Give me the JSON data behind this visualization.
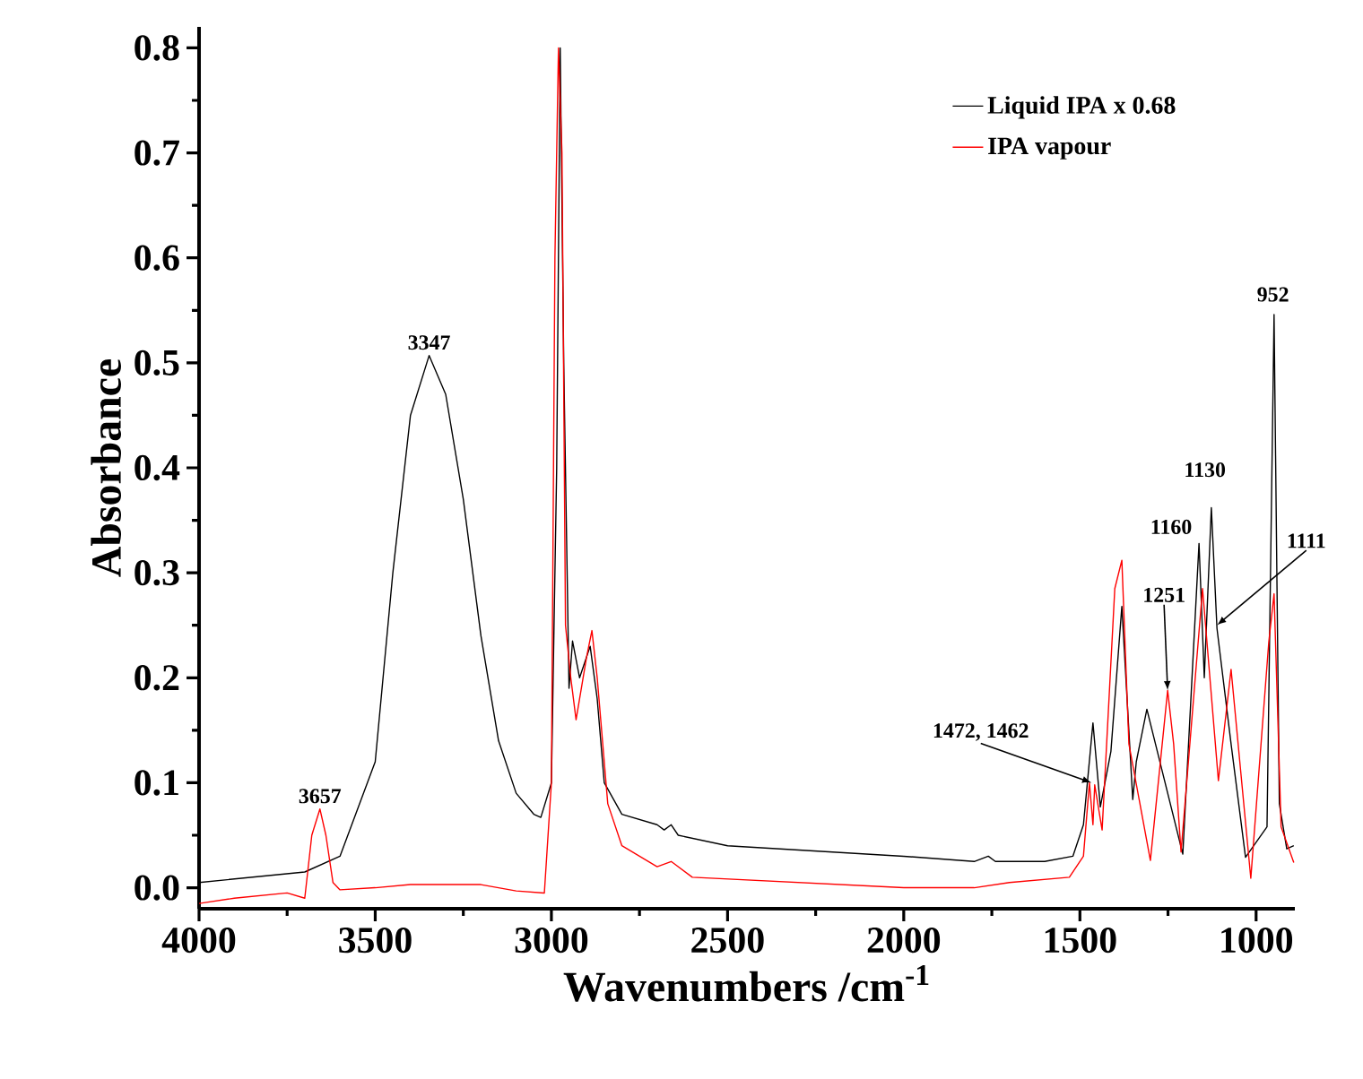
{
  "chart_data": {
    "type": "line",
    "xlabel": "Wavenumbers /cm$^{-1}$",
    "ylabel": "Absorbance",
    "xlim": [
      4000,
      890
    ],
    "ylim": [
      -0.02,
      0.82
    ],
    "xticks": [
      4000,
      3500,
      3000,
      2500,
      2000,
      1500,
      1000
    ],
    "yticks": [
      {
        "value": 0,
        "label": "0.0"
      },
      0.1,
      0.2,
      0.3,
      0.4,
      0.5,
      0.6,
      0.7,
      0.8
    ],
    "legend": "top right",
    "marker": "none",
    "line_style": "solid",
    "grid": false,
    "series": [
      {
        "name": "Liquid IPA x 0.68",
        "color": "#000000",
        "x": [
          4000,
          3700,
          3600,
          3500,
          3450,
          3400,
          3347,
          3300,
          3250,
          3200,
          3150,
          3100,
          3050,
          3030,
          3000,
          2985,
          2975,
          2965,
          2950,
          2940,
          2920,
          2890,
          2870,
          2850,
          2800,
          2700,
          2680,
          2660,
          2640,
          2500,
          2000,
          1800,
          1760,
          1740,
          1600,
          1520,
          1490,
          1463,
          1442,
          1412,
          1381,
          1350,
          1340,
          1310,
          1208,
          1162,
          1147,
          1127,
          1111,
          1071,
          1030,
          969,
          949,
          934,
          913,
          893
        ],
        "values": [
          0.005,
          0.015,
          0.03,
          0.12,
          0.3,
          0.45,
          0.507,
          0.47,
          0.37,
          0.24,
          0.14,
          0.09,
          0.07,
          0.067,
          0.1,
          0.4,
          0.8,
          0.5,
          0.19,
          0.235,
          0.2,
          0.23,
          0.18,
          0.1,
          0.07,
          0.06,
          0.055,
          0.06,
          0.05,
          0.04,
          0.03,
          0.025,
          0.03,
          0.025,
          0.025,
          0.03,
          0.06,
          0.157,
          0.077,
          0.13,
          0.268,
          0.084,
          0.12,
          0.17,
          0.032,
          0.328,
          0.2,
          0.362,
          0.247,
          0.137,
          0.029,
          0.058,
          0.546,
          0.08,
          0.037,
          0.04
        ]
      },
      {
        "name": "IPA vapour",
        "color": "#ff0000",
        "x": [
          4000,
          3900,
          3750,
          3700,
          3680,
          3657,
          3640,
          3620,
          3600,
          3500,
          3400,
          3200,
          3100,
          3020,
          3000,
          2990,
          2980,
          2970,
          2960,
          2945,
          2930,
          2900,
          2885,
          2870,
          2840,
          2800,
          2700,
          2660,
          2600,
          2000,
          1800,
          1700,
          1530,
          1490,
          1473,
          1463,
          1458,
          1437,
          1401,
          1381,
          1361,
          1300,
          1251,
          1234,
          1213,
          1152,
          1107,
          1071,
          1015,
          964,
          949,
          929,
          893
        ],
        "values": [
          -0.015,
          -0.01,
          -0.005,
          -0.01,
          0.05,
          0.075,
          0.05,
          0.005,
          -0.002,
          0.0,
          0.003,
          0.003,
          -0.003,
          -0.005,
          0.1,
          0.6,
          0.8,
          0.7,
          0.25,
          0.2,
          0.16,
          0.22,
          0.245,
          0.2,
          0.08,
          0.04,
          0.02,
          0.025,
          0.01,
          0.0,
          0.0,
          0.005,
          0.01,
          0.03,
          0.1,
          0.06,
          0.098,
          0.055,
          0.285,
          0.312,
          0.137,
          0.026,
          0.188,
          0.137,
          0.034,
          0.285,
          0.102,
          0.208,
          0.009,
          0.234,
          0.28,
          0.058,
          0.024
        ]
      }
    ],
    "annotations": [
      {
        "text": "3657",
        "x": 3657,
        "y": 0.075
      },
      {
        "text": "3347",
        "x": 3347,
        "y": 0.507
      },
      {
        "text": "1472, 1462",
        "x": 1467,
        "y": 0.1
      },
      {
        "text": "1251",
        "x": 1251,
        "y": 0.188
      },
      {
        "text": "1160",
        "x": 1160,
        "y": 0.328
      },
      {
        "text": "1130",
        "x": 1130,
        "y": 0.362
      },
      {
        "text": "1111",
        "x": 1111,
        "y": 0.25
      },
      {
        "text": "952",
        "x": 952,
        "y": 0.546
      }
    ]
  }
}
